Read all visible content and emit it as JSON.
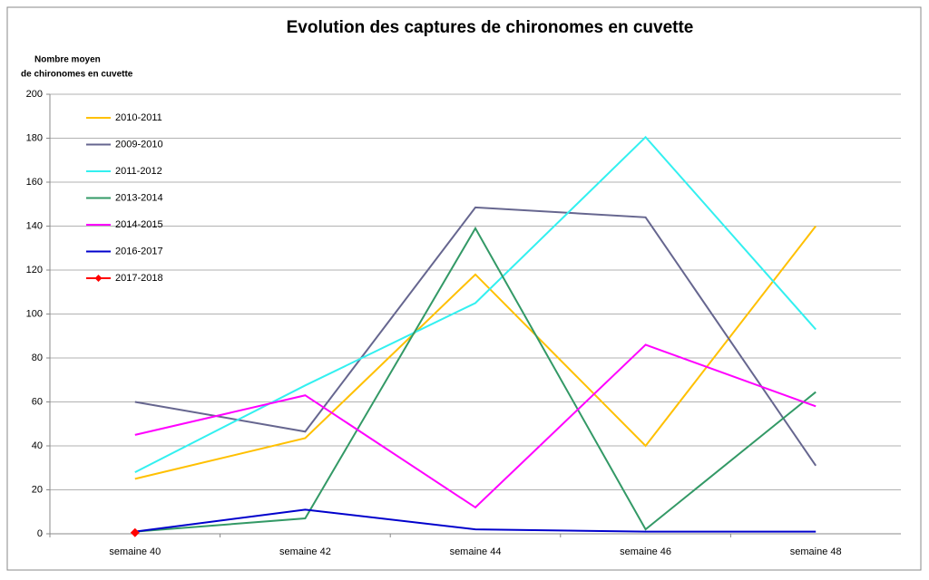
{
  "chart_data": {
    "type": "line",
    "title": "Evolution des captures de chironomes en cuvette",
    "y_label": [
      "Nombre moyen",
      "de chironomes en cuvette"
    ],
    "categories": [
      "semaine 40",
      "semaine 42",
      "semaine 44",
      "semaine 46",
      "semaine 48"
    ],
    "ylim": [
      0,
      200
    ],
    "yticks": [
      0,
      20,
      40,
      60,
      80,
      100,
      120,
      140,
      160,
      180,
      200
    ],
    "grid": true,
    "legend": "upper-left",
    "series": [
      {
        "name": "2010-2011",
        "color": "#ffc000",
        "values": [
          25,
          43.5,
          118,
          40,
          140
        ]
      },
      {
        "name": "2009-2010",
        "color": "#66668f",
        "values": [
          60,
          46.5,
          148.5,
          144,
          31
        ]
      },
      {
        "name": "2011-2012",
        "color": "#33f0f0",
        "values": [
          28,
          67.5,
          105,
          180.5,
          93
        ]
      },
      {
        "name": "2013-2014",
        "color": "#339966",
        "values": [
          1,
          7,
          139,
          2,
          64.5
        ]
      },
      {
        "name": "2014-2015",
        "color": "#ff00ff",
        "values": [
          45,
          63,
          12,
          86,
          58
        ]
      },
      {
        "name": "2016-2017",
        "color": "#0000cc",
        "values": [
          1,
          11,
          2,
          1,
          1
        ]
      },
      {
        "name": "2017-2018",
        "color": "#ff0000",
        "marker": "diamond",
        "values": [
          0.5,
          null,
          null,
          null,
          null
        ]
      }
    ]
  }
}
